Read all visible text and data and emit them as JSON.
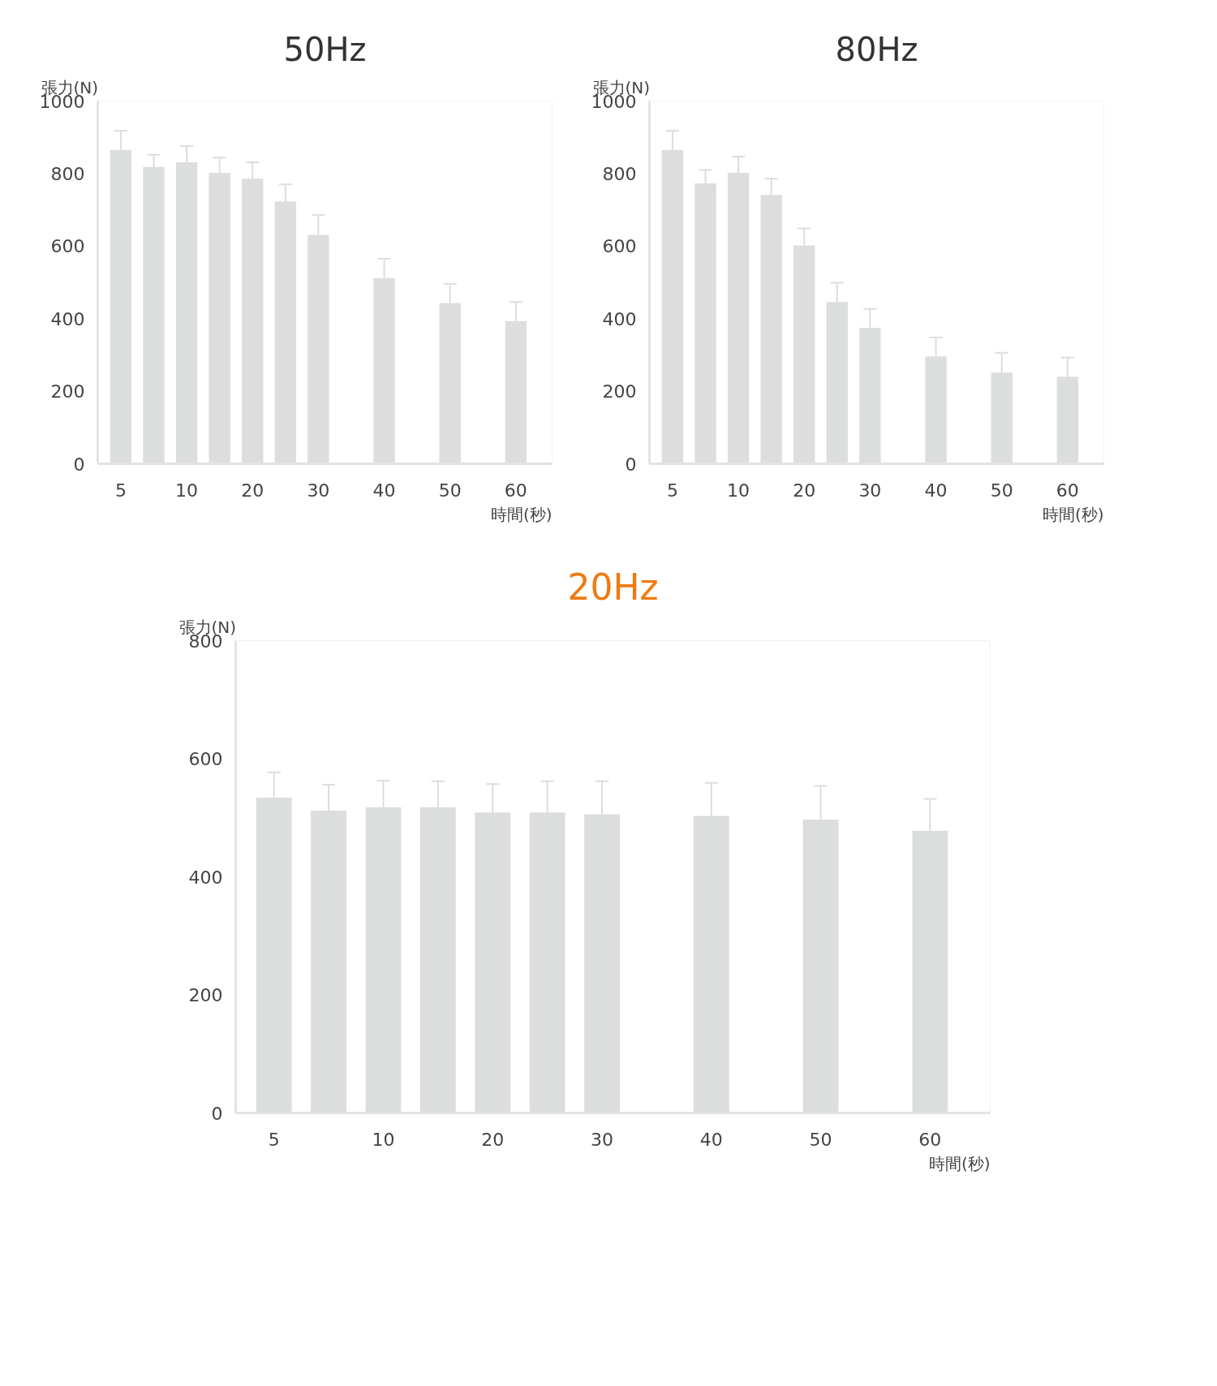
{
  "chart_data": [
    {
      "type": "bar",
      "title": "50Hz",
      "ylabel": "張力(N)",
      "xlabel": "時間(秒)",
      "categories": [
        "5",
        null,
        "10",
        null,
        "20",
        null,
        "30",
        null,
        "40",
        null,
        "50",
        null,
        "60"
      ],
      "color": "#dcdddd",
      "values": [
        865,
        818,
        831,
        802,
        786,
        723,
        631,
        null,
        512,
        null,
        443,
        null,
        393
      ],
      "errors": [
        [
          865,
          918
        ],
        [
          818,
          852
        ],
        [
          831,
          876
        ],
        [
          802,
          844
        ],
        [
          786,
          831
        ],
        [
          723,
          770
        ],
        [
          631,
          686
        ],
        null,
        [
          512,
          565
        ],
        null,
        [
          443,
          496
        ],
        null,
        [
          393,
          446
        ]
      ],
      "ylim": [
        0,
        1000
      ],
      "yticks": [
        0,
        200,
        400,
        600,
        800,
        1000
      ]
    },
    {
      "type": "bar",
      "title": "80Hz",
      "ylabel": "張力(N)",
      "xlabel": "時間(秒)",
      "categories": [
        "5",
        null,
        "10",
        null,
        "20",
        null,
        "30",
        null,
        "40",
        null,
        "50",
        null,
        "60"
      ],
      "color": "#dcdddd",
      "values": [
        865,
        773,
        802,
        741,
        602,
        446,
        375,
        null,
        296,
        null,
        251,
        null,
        240
      ],
      "errors": [
        [
          865,
          918
        ],
        [
          773,
          810
        ],
        [
          802,
          847
        ],
        [
          741,
          786
        ],
        [
          602,
          649
        ],
        [
          446,
          499
        ],
        [
          375,
          427
        ],
        null,
        [
          296,
          348
        ],
        null,
        [
          251,
          306
        ],
        null,
        [
          240,
          293
        ]
      ],
      "ylim": [
        0,
        1000
      ],
      "yticks": [
        0,
        200,
        400,
        600,
        800,
        1000
      ]
    },
    {
      "type": "bar",
      "title": "20Hz",
      "ylabel": "張力(N)",
      "xlabel": "時間(秒)",
      "categories": [
        "5",
        null,
        "10",
        null,
        "20",
        null,
        "30",
        null,
        "40",
        null,
        "50",
        null,
        "60"
      ],
      "color": "#dcdddd",
      "values": [
        534,
        512,
        518,
        518,
        509,
        509,
        506,
        null,
        503,
        null,
        497,
        null,
        478
      ],
      "errors": [
        [
          534,
          577
        ],
        [
          512,
          556
        ],
        [
          518,
          563
        ],
        [
          518,
          562
        ],
        [
          509,
          557
        ],
        [
          509,
          562
        ],
        [
          506,
          562
        ],
        null,
        [
          503,
          559
        ],
        null,
        [
          497,
          554
        ],
        null,
        [
          478,
          532
        ]
      ],
      "ylim": [
        0,
        800
      ],
      "yticks": [
        0,
        200,
        400,
        600,
        800
      ]
    }
  ]
}
